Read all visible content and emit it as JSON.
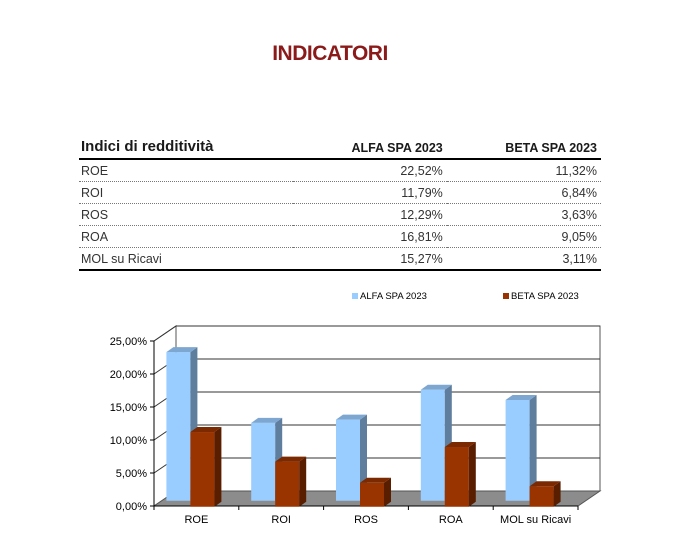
{
  "title": "INDICATORI",
  "table": {
    "header": {
      "label": "Indici di redditività",
      "col1": "ALFA SPA 2023",
      "col2": "BETA SPA 2023"
    },
    "rows": [
      {
        "label": "ROE",
        "alfa": "22,52%",
        "beta": "11,32%"
      },
      {
        "label": "ROI",
        "alfa": "11,79%",
        "beta": "6,84%"
      },
      {
        "label": "ROS",
        "alfa": "12,29%",
        "beta": "3,63%"
      },
      {
        "label": "ROA",
        "alfa": "16,81%",
        "beta": "9,05%"
      },
      {
        "label": "MOL su Ricavi",
        "alfa": "15,27%",
        "beta": "3,11%"
      }
    ]
  },
  "chart_data": {
    "type": "bar",
    "title": "",
    "xlabel": "",
    "ylabel": "",
    "categories": [
      "ROE",
      "ROI",
      "ROS",
      "ROA",
      "MOL su Ricavi"
    ],
    "series": [
      {
        "name": "ALFA SPA 2023",
        "color": "#99ccff",
        "values": [
          22.52,
          11.79,
          12.29,
          16.81,
          15.27
        ]
      },
      {
        "name": "BETA SPA 2023",
        "color": "#993300",
        "values": [
          11.32,
          6.84,
          3.63,
          9.05,
          3.11
        ]
      }
    ],
    "ylim": [
      0,
      25
    ],
    "yticks": [
      "0,00%",
      "5,00%",
      "10,00%",
      "15,00%",
      "20,00%",
      "25,00%"
    ],
    "grid": true,
    "legend": "top",
    "style": "3d-column"
  }
}
